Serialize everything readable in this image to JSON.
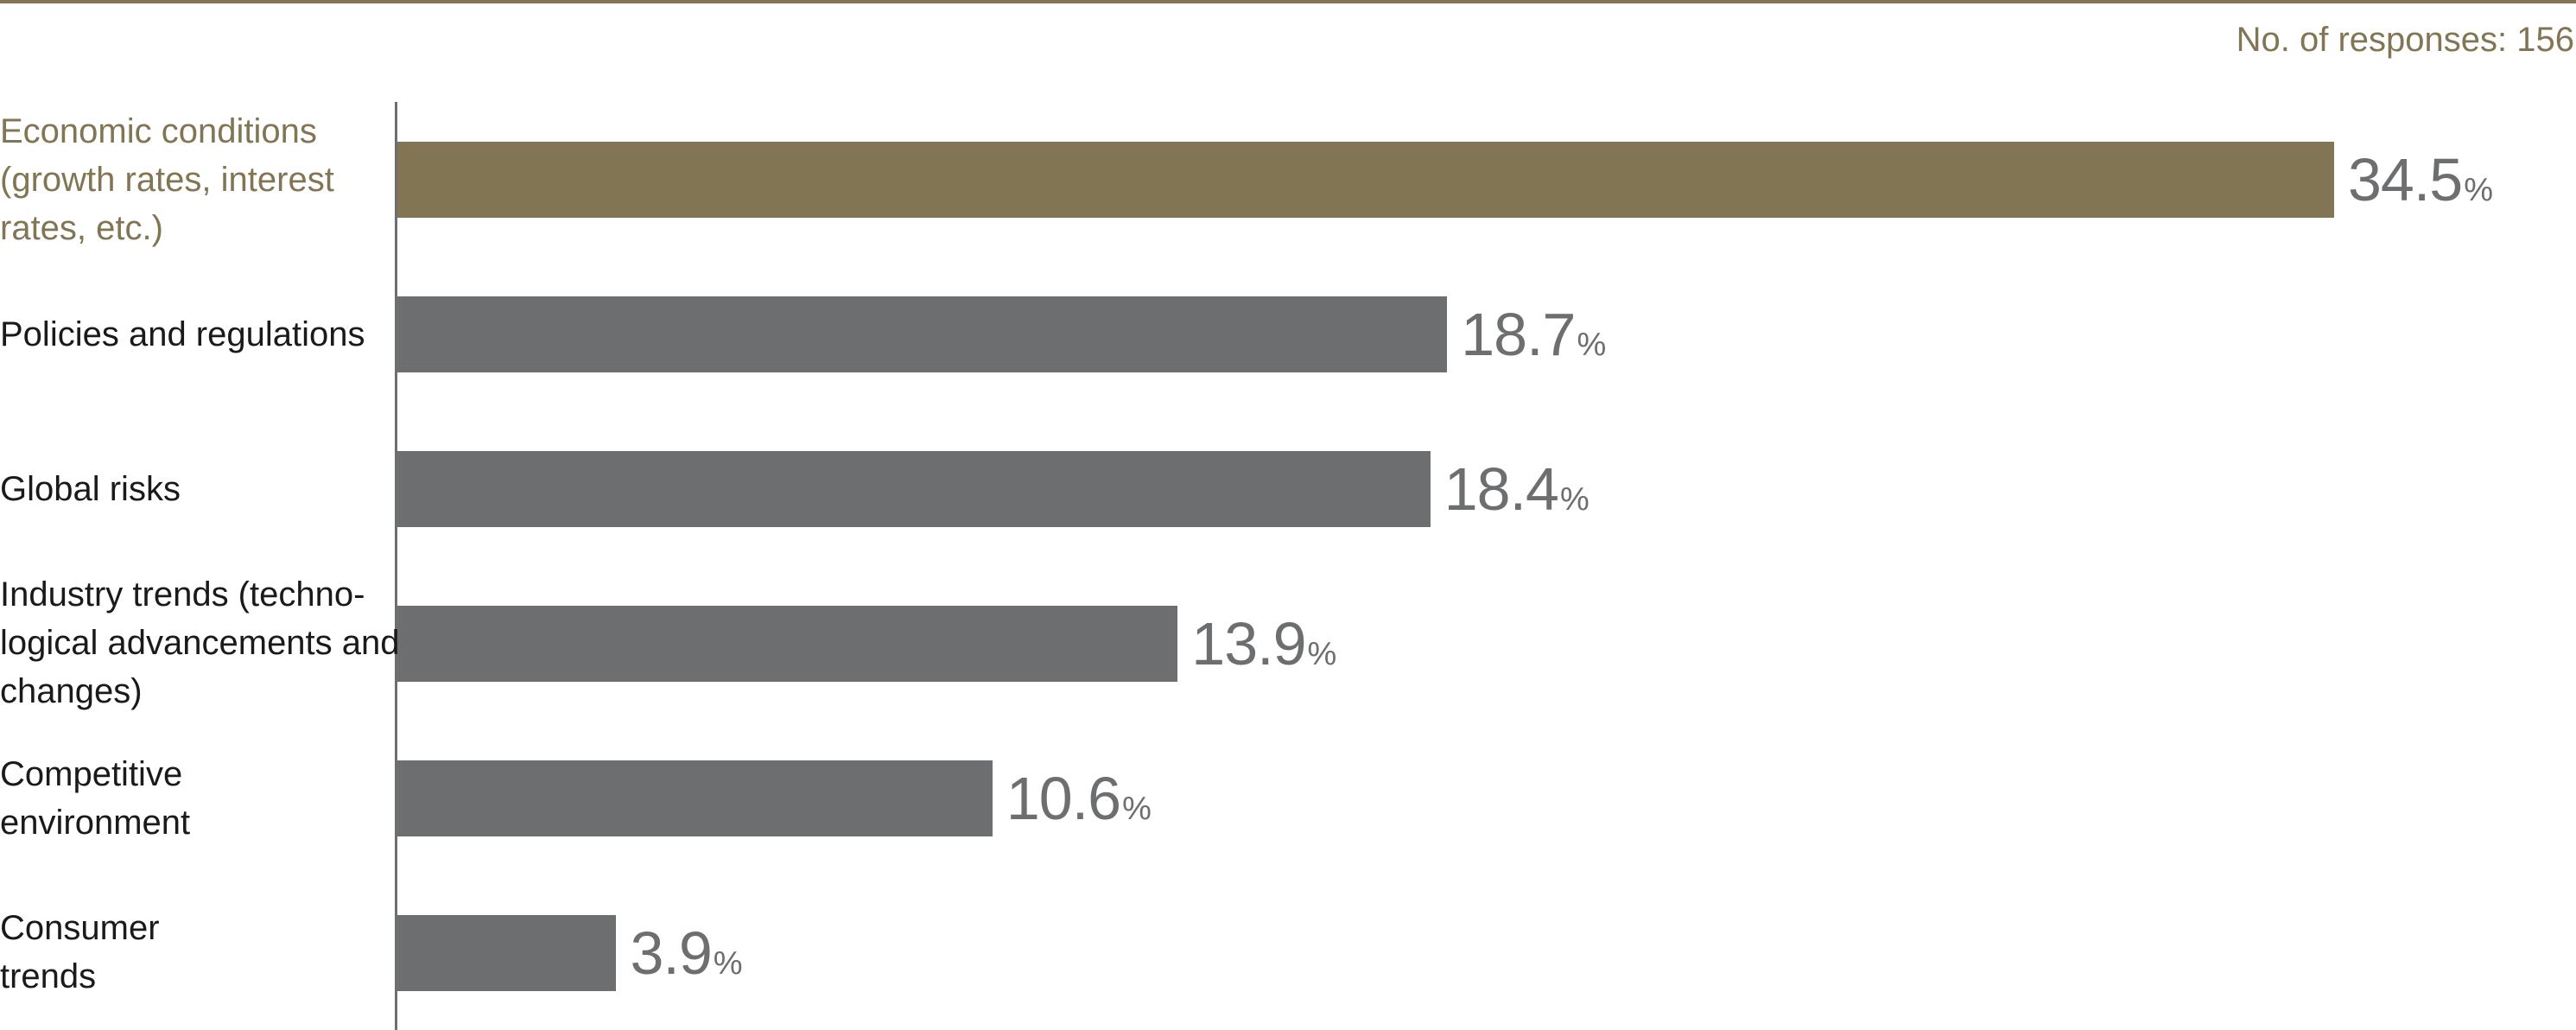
{
  "header": {
    "responses_label": "No. of responses: 156"
  },
  "colors": {
    "highlight": "#817553",
    "bar": "#6d6e70",
    "text": "#1a1a1a"
  },
  "chart_data": {
    "type": "bar",
    "orientation": "horizontal",
    "categories": [
      "Economic conditions\n(growth rates, interest\nrates, etc.)",
      "Policies and regulations",
      "Global risks",
      "Industry trends (techno-\nlogical advancements and\nchanges)",
      "Competitive\nenvironment",
      "Consumer\ntrends"
    ],
    "values": [
      34.5,
      18.7,
      18.4,
      13.9,
      10.6,
      3.9
    ],
    "value_labels": [
      "34.5",
      "18.7",
      "18.4",
      "13.9",
      "10.6",
      "3.9"
    ],
    "unit": "%",
    "highlight_index": 0,
    "xlim": [
      0,
      40
    ],
    "grid": false,
    "legend": "none"
  }
}
